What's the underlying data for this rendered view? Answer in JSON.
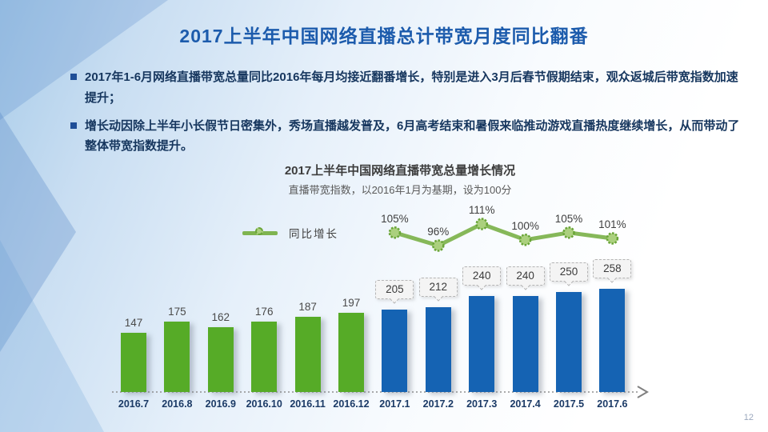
{
  "slide": {
    "title": "2017上半年中国网络直播总计带宽月度同比翻番",
    "bullets": [
      "2017年1-6月网络直播带宽总量同比2016年每月均接近翻番增长，特别是进入3月后春节假期结束，观众返城后带宽指数加速提升；",
      "增长动因除上半年小长假节日密集外，秀场直播越发普及，6月高考结束和暑假来临推动游戏直播热度继续增长，从而带动了整体带宽指数提升。"
    ],
    "page_number": "12"
  },
  "chart_data": {
    "type": "bar",
    "title": "2017上半年中国网络直播带宽总量增长情况",
    "subtitle": "直播带宽指数，以2016年1月为基期，设为100分",
    "categories": [
      "2016.7",
      "2016.8",
      "2016.9",
      "2016.10",
      "2016.11",
      "2016.12",
      "2017.1",
      "2017.2",
      "2017.3",
      "2017.4",
      "2017.5",
      "2017.6"
    ],
    "series": [
      {
        "name": "直播带宽指数",
        "type": "bar",
        "values": [
          147,
          175,
          162,
          176,
          187,
          197,
          205,
          212,
          240,
          240,
          250,
          258
        ]
      },
      {
        "name": "同比增长",
        "type": "line",
        "unit": "%",
        "categories": [
          "2017.1",
          "2017.2",
          "2017.3",
          "2017.4",
          "2017.5",
          "2017.6"
        ],
        "values": [
          105,
          96,
          111,
          100,
          105,
          101
        ]
      }
    ],
    "legend": [
      {
        "label": "同比增长"
      }
    ],
    "colors": {
      "bar_2016": "#56ab27",
      "bar_2017": "#1563b3",
      "line": "#7fb450",
      "marker_fill": "#abd07e",
      "marker_stroke": "#69a437"
    },
    "baseline_note": "以2016年1月为基期=100分",
    "grid": false,
    "legend_position": "left"
  }
}
